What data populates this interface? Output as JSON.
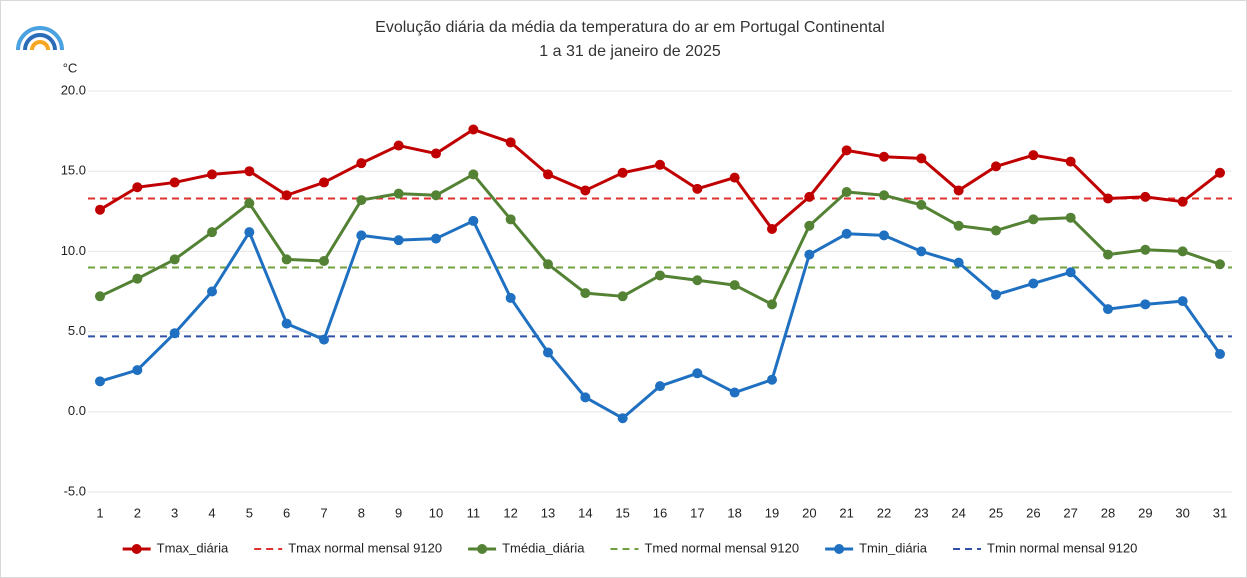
{
  "chart_data": {
    "type": "line",
    "title": "Evolução diária da média da temperatura do ar em Portugal Continental",
    "subtitle": "1 a 31 de janeiro de 2025",
    "y_label": "°C",
    "categories": [
      "1",
      "2",
      "3",
      "4",
      "5",
      "6",
      "7",
      "8",
      "9",
      "10",
      "11",
      "12",
      "13",
      "14",
      "15",
      "16",
      "17",
      "18",
      "19",
      "20",
      "21",
      "22",
      "23",
      "24",
      "25",
      "26",
      "27",
      "28",
      "29",
      "30",
      "31"
    ],
    "ylim": [
      -5,
      20
    ],
    "yticks": [
      {
        "value": -5,
        "label": "-5.0"
      },
      {
        "value": 0,
        "label": "0.0"
      },
      {
        "value": 5,
        "label": "5.0"
      },
      {
        "value": 10,
        "label": "10.0"
      },
      {
        "value": 15,
        "label": "15.0"
      },
      {
        "value": 20,
        "label": "20.0"
      }
    ],
    "grid": true,
    "legend": "bottom",
    "series": [
      {
        "name": "Tmax_diária",
        "color": "#c00000",
        "style": "solid",
        "values": [
          12.6,
          14.0,
          14.3,
          14.8,
          15.0,
          13.5,
          14.3,
          15.5,
          16.6,
          16.1,
          17.6,
          16.8,
          14.8,
          13.8,
          14.9,
          15.4,
          13.9,
          14.6,
          11.4,
          13.4,
          16.3,
          15.9,
          15.8,
          13.8,
          15.3,
          16.0,
          15.6,
          13.3,
          13.4,
          13.1,
          14.9
        ]
      },
      {
        "name": "Tmax normal mensal 9120",
        "color": "#e03030",
        "style": "dashed",
        "value": 13.3
      },
      {
        "name": "Tmédia_diária",
        "color": "#548235",
        "style": "solid",
        "values": [
          7.2,
          8.3,
          9.5,
          11.2,
          13.0,
          9.5,
          9.4,
          13.2,
          13.6,
          13.5,
          14.8,
          12.0,
          9.2,
          7.4,
          7.2,
          8.5,
          8.2,
          7.9,
          6.7,
          11.6,
          13.7,
          13.5,
          12.9,
          11.6,
          11.3,
          12.0,
          12.1,
          9.8,
          10.1,
          10.0,
          9.2
        ]
      },
      {
        "name": "Tmed normal mensal 9120",
        "color": "#70a040",
        "style": "dashed",
        "value": 9.0
      },
      {
        "name": "Tmin_diária",
        "color": "#1f70c1",
        "style": "solid",
        "values": [
          1.9,
          2.6,
          4.9,
          7.5,
          11.2,
          5.5,
          4.5,
          11.0,
          10.7,
          10.8,
          11.9,
          7.1,
          3.7,
          0.9,
          -0.4,
          1.6,
          2.4,
          1.2,
          2.0,
          9.8,
          11.1,
          11.0,
          10.0,
          9.3,
          7.3,
          8.0,
          8.7,
          6.4,
          6.7,
          6.9,
          3.6
        ]
      },
      {
        "name": "Tmin normal mensal 9120",
        "color": "#3050a8",
        "style": "dashed",
        "value": 4.7
      }
    ]
  }
}
